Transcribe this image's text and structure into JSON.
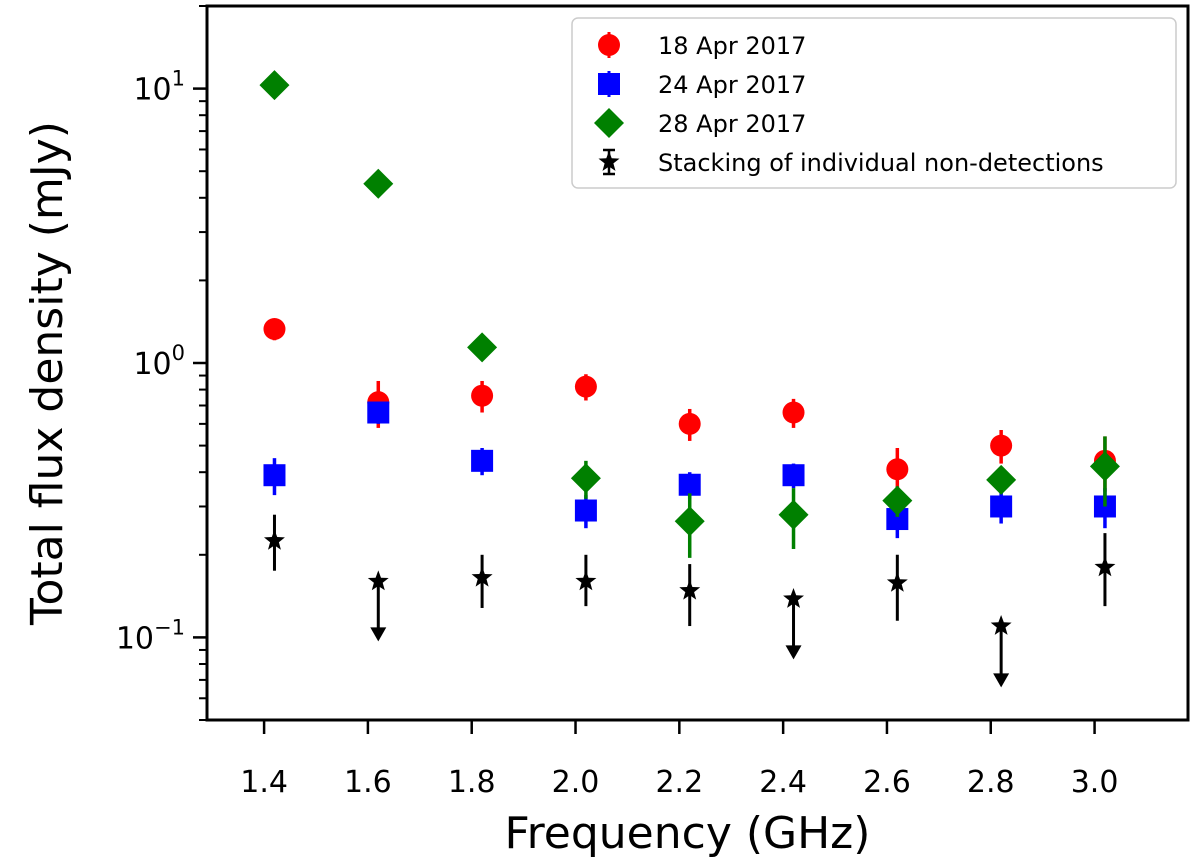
{
  "chart_data": {
    "type": "scatter",
    "title": "",
    "xlabel": "Frequency (GHz)",
    "ylabel": "Total flux density (mJy)",
    "xscale": "linear",
    "yscale": "log",
    "xlim": [
      1.29,
      3.18
    ],
    "ylim": [
      0.05,
      20
    ],
    "xticks": [
      1.4,
      1.6,
      1.8,
      2.0,
      2.2,
      2.4,
      2.6,
      2.8,
      3.0
    ],
    "xtick_labels": [
      "1.4",
      "1.6",
      "1.8",
      "2.0",
      "2.2",
      "2.4",
      "2.6",
      "2.8",
      "3.0"
    ],
    "yticks_major": [
      {
        "value": 0.1,
        "base": "10",
        "exp": "−1"
      },
      {
        "value": 1,
        "base": "10",
        "exp": "0"
      },
      {
        "value": 10,
        "base": "10",
        "exp": "1"
      }
    ],
    "legend_position": "top-right",
    "series": [
      {
        "name": "18 Apr 2017",
        "marker": "circle",
        "color": "#ff0000",
        "points": [
          {
            "x": 1.42,
            "y": 1.33,
            "err": 0.12
          },
          {
            "x": 1.62,
            "y": 0.72,
            "err": 0.14
          },
          {
            "x": 1.82,
            "y": 0.76,
            "err": 0.1
          },
          {
            "x": 2.02,
            "y": 0.82,
            "err": 0.09
          },
          {
            "x": 2.22,
            "y": 0.6,
            "err": 0.08
          },
          {
            "x": 2.42,
            "y": 0.66,
            "err": 0.08
          },
          {
            "x": 2.62,
            "y": 0.41,
            "err": 0.08
          },
          {
            "x": 2.82,
            "y": 0.5,
            "err": 0.07
          },
          {
            "x": 3.02,
            "y": 0.44,
            "err": 0.1
          }
        ]
      },
      {
        "name": "24 Apr 2017",
        "marker": "square",
        "color": "#0000ff",
        "points": [
          {
            "x": 1.42,
            "y": 0.39,
            "err": 0.06
          },
          {
            "x": 1.62,
            "y": 0.66,
            "err": 0.06
          },
          {
            "x": 1.82,
            "y": 0.44,
            "err": 0.05
          },
          {
            "x": 2.02,
            "y": 0.29,
            "err": 0.04
          },
          {
            "x": 2.22,
            "y": 0.36,
            "err": 0.04
          },
          {
            "x": 2.42,
            "y": 0.39,
            "err": 0.04
          },
          {
            "x": 2.62,
            "y": 0.27,
            "err": 0.04
          },
          {
            "x": 2.82,
            "y": 0.3,
            "err": 0.04
          },
          {
            "x": 3.02,
            "y": 0.3,
            "err": 0.05
          }
        ]
      },
      {
        "name": "28 Apr 2017",
        "marker": "diamond",
        "color": "#008000",
        "points": [
          {
            "x": 1.42,
            "y": 10.3,
            "err": 0.4
          },
          {
            "x": 1.62,
            "y": 4.5,
            "err": 0.2
          },
          {
            "x": 1.82,
            "y": 1.14,
            "err": 0.05
          },
          {
            "x": 2.02,
            "y": 0.38,
            "err": 0.06
          },
          {
            "x": 2.22,
            "y": 0.265,
            "err": 0.07
          },
          {
            "x": 2.42,
            "y": 0.28,
            "err": 0.07
          },
          {
            "x": 2.62,
            "y": 0.315,
            "err": 0.04
          },
          {
            "x": 2.82,
            "y": 0.375,
            "err": 0.04
          },
          {
            "x": 3.02,
            "y": 0.42,
            "err": 0.12
          }
        ]
      },
      {
        "name": "Stacking of individual non-detections",
        "marker": "star",
        "color": "#000000",
        "points": [
          {
            "x": 1.42,
            "y": 0.225,
            "lo": 0.175,
            "hi": 0.28
          },
          {
            "x": 1.62,
            "y": 0.16,
            "upper_limit": true,
            "arrow_to": 0.1
          },
          {
            "x": 1.82,
            "y": 0.165,
            "lo": 0.128,
            "hi": 0.2
          },
          {
            "x": 2.02,
            "y": 0.16,
            "lo": 0.13,
            "hi": 0.2
          },
          {
            "x": 2.22,
            "y": 0.148,
            "lo": 0.11,
            "hi": 0.185
          },
          {
            "x": 2.42,
            "y": 0.138,
            "upper_limit": true,
            "arrow_to": 0.086
          },
          {
            "x": 2.62,
            "y": 0.158,
            "lo": 0.115,
            "hi": 0.2
          },
          {
            "x": 2.82,
            "y": 0.11,
            "upper_limit": true,
            "arrow_to": 0.068
          },
          {
            "x": 3.02,
            "y": 0.18,
            "lo": 0.13,
            "hi": 0.24
          }
        ]
      }
    ]
  }
}
